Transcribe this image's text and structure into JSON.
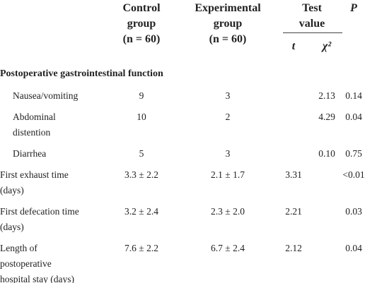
{
  "table": {
    "header": {
      "control": [
        "Control",
        "group",
        "(n = 60)"
      ],
      "experimental": [
        "Experimental",
        "group",
        "(n = 60)"
      ],
      "test_value": [
        "Test",
        "value"
      ],
      "t": "t",
      "chi2": "χ²",
      "p": "P"
    },
    "section": {
      "title": "Postoperative gastrointestinal function",
      "rows": [
        {
          "label": [
            "Nausea/vomiting"
          ],
          "control": "9",
          "experimental": "3",
          "t": null,
          "chi2": "2.13",
          "p": "0.14"
        },
        {
          "label": [
            "Abdominal",
            "distention"
          ],
          "control": "10",
          "experimental": "2",
          "t": null,
          "chi2": "4.29",
          "p": "0.04"
        },
        {
          "label": [
            "Diarrhea"
          ],
          "control": "5",
          "experimental": "3",
          "t": null,
          "chi2": "0.10",
          "p": "0.75"
        }
      ]
    },
    "rows": [
      {
        "label": [
          "First exhaust time",
          "(days)"
        ],
        "control": "3.3 ± 2.2",
        "experimental": "2.1 ± 1.7",
        "t": "3.31",
        "chi2": null,
        "p": "<0.01"
      },
      {
        "label": [
          "First defecation time",
          "(days)"
        ],
        "control": "3.2 ± 2.4",
        "experimental": "2.3 ± 2.0",
        "t": "2.21",
        "chi2": null,
        "p": "0.03"
      },
      {
        "label": [
          "Length of",
          "postoperative",
          "hospital stay (days)"
        ],
        "control": "7.6 ± 2.2",
        "experimental": "6.7 ± 2.4",
        "t": "2.12",
        "chi2": null,
        "p": "0.04"
      }
    ]
  }
}
